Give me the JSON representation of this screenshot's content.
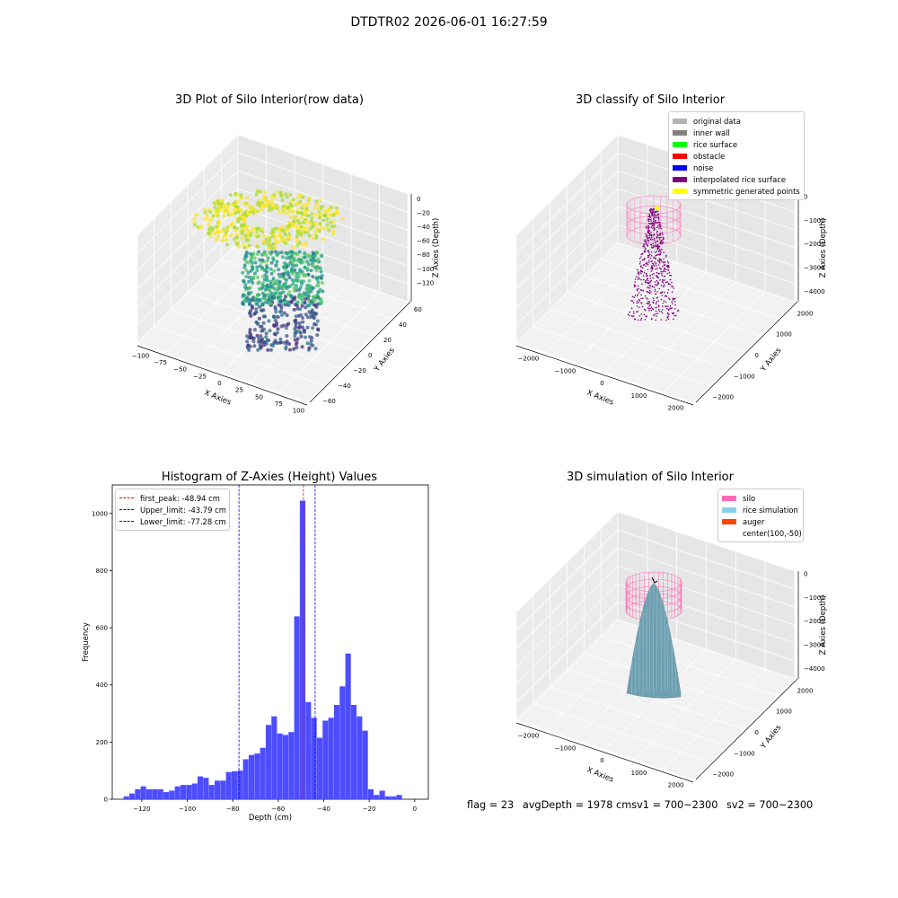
{
  "figure_title": "DTDTR02 2026-06-01 16:27:59",
  "status": {
    "flag": "flag = 23",
    "avg_depth": "avgDepth = 1978 cm",
    "sv1": "sv1 = 700~2300",
    "sv2": "sv2 = 700~2300"
  },
  "chart_data": [
    {
      "type": "scatter",
      "title": "3D Plot of Silo Interior(row data)",
      "xlabel": "X Axies",
      "ylabel": "Y Axies",
      "zlabel": "Z Axies (Depth)",
      "xlim": [
        -110,
        110
      ],
      "ylim": [
        -65,
        75
      ],
      "zlim": [
        -135,
        5
      ],
      "x_ticks": [
        "−100",
        "−75",
        "−50",
        "−25",
        "0",
        "25",
        "50",
        "75",
        "100"
      ],
      "y_ticks": [
        "−60",
        "−40",
        "−20",
        "0",
        "20",
        "40",
        "60"
      ],
      "z_ticks": [
        "0",
        "−20",
        "−40",
        "−60",
        "−80",
        "−100",
        "−120"
      ],
      "colormap": "viridis"
    },
    {
      "type": "scatter",
      "title": "3D classify of Silo Interior",
      "xlabel": "X Axies",
      "ylabel": "Y Axies",
      "zlabel": "Z Axies (Depth)",
      "x_ticks": [
        "−2000",
        "−1000",
        "0",
        "1000",
        "2000"
      ],
      "y_ticks": [
        "−2000",
        "−1000",
        "0",
        "1000",
        "2000"
      ],
      "z_ticks": [
        "0",
        "−1000",
        "−2000",
        "−3000",
        "−4000"
      ],
      "legend": [
        {
          "label": "original data",
          "color": "#b3b3b3"
        },
        {
          "label": "inner wall",
          "color": "#808080"
        },
        {
          "label": "rice surface",
          "color": "#00ff00"
        },
        {
          "label": "obstacle",
          "color": "#ff0000"
        },
        {
          "label": "noise",
          "color": "#0000ff"
        },
        {
          "label": "interpolated rice surface",
          "color": "#800080"
        },
        {
          "label": "symmetric generated points",
          "color": "#ffff00"
        }
      ],
      "legend_position": "top-right"
    },
    {
      "type": "bar",
      "title": "Histogram of Z-Axies (Height) Values",
      "xlabel": "Depth (cm)",
      "ylabel": "Frequency",
      "xlim": [
        -133,
        6
      ],
      "ylim": [
        0,
        1100
      ],
      "bin_width": 2.5,
      "bin_start": -128,
      "values": [
        10,
        20,
        35,
        45,
        35,
        35,
        35,
        25,
        30,
        45,
        50,
        50,
        55,
        80,
        75,
        50,
        65,
        65,
        95,
        98,
        100,
        140,
        155,
        160,
        180,
        260,
        290,
        230,
        225,
        235,
        640,
        1045,
        340,
        285,
        215,
        275,
        285,
        330,
        395,
        510,
        330,
        290,
        240,
        35,
        15,
        30,
        10,
        10,
        15
      ],
      "x_ticks": [
        -120,
        -100,
        -80,
        -60,
        -40,
        -20,
        0
      ],
      "y_ticks": [
        0,
        200,
        400,
        600,
        800,
        1000
      ],
      "bar_color": "#4d4dff",
      "vlines": [
        {
          "label": "first_peak: -48.94 cm",
          "x": -48.94,
          "color": "#ff0000"
        },
        {
          "label": "Upper_limit: -43.79 cm",
          "x": -43.79,
          "color": "#0000ff"
        },
        {
          "label": "Lower_limit: -77.28 cm",
          "x": -77.28,
          "color": "#0000ff"
        }
      ],
      "legend_position": "top-left"
    },
    {
      "type": "area",
      "title": "3D simulation of Silo Interior",
      "xlabel": "X Axies",
      "ylabel": "Y Axies",
      "zlabel": "Z Axies (Depth)",
      "x_ticks": [
        "−2000",
        "−1000",
        "0",
        "1000",
        "2000"
      ],
      "y_ticks": [
        "−2000",
        "−1000",
        "0",
        "1000",
        "2000"
      ],
      "z_ticks": [
        "0",
        "−1000",
        "−2000",
        "−3000",
        "−4000"
      ],
      "legend": [
        {
          "label": "silo",
          "color": "#ff69b4"
        },
        {
          "label": "rice simulation",
          "color": "#87ceeb"
        },
        {
          "label": "auger",
          "color": "#ff4500"
        },
        {
          "label": "center(100,-50)",
          "color": ""
        }
      ],
      "legend_position": "top-right"
    }
  ]
}
